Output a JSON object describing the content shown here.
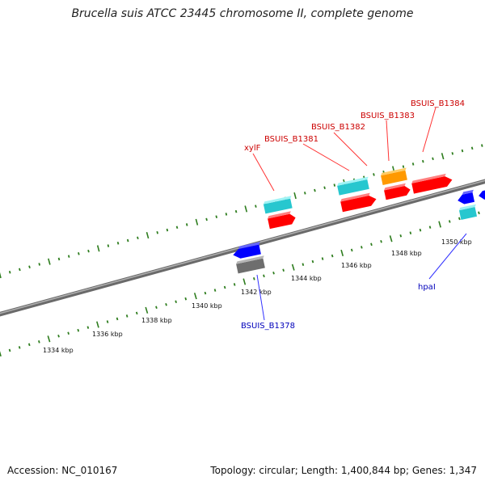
{
  "title": "Brucella suis ATCC 23445 chromosome II, complete genome",
  "footer": {
    "accession": "Accession: NC_010167",
    "topology": "Topology: circular; Length: 1,400,844 bp; Genes: 1,347"
  },
  "colors": {
    "backbone": "#8a8a8a",
    "tick": "#2e7d1e",
    "forward_gene": "#ff0000",
    "forward_other": "#27c7cf",
    "forward_highlight": "#ff9900",
    "reverse_gene": "#0000ff",
    "reverse_other": "#6e6e6e",
    "reverse_aux": "#27c7cf",
    "forward_label": "#cc0000",
    "reverse_label": "#0000bb"
  },
  "scale_labels": [
    "1334 kbp",
    "1336 kbp",
    "1338 kbp",
    "1340 kbp",
    "1342 kbp",
    "1344 kbp",
    "1346 kbp",
    "1348 kbp",
    "1350 kbp"
  ],
  "forward_labels": [
    "xylF",
    "BSUIS_B1381",
    "BSUIS_B1382",
    "BSUIS_B1383",
    "BSUIS_B1384"
  ],
  "reverse_labels": [
    "BSUIS_B1378",
    "hpaI"
  ]
}
